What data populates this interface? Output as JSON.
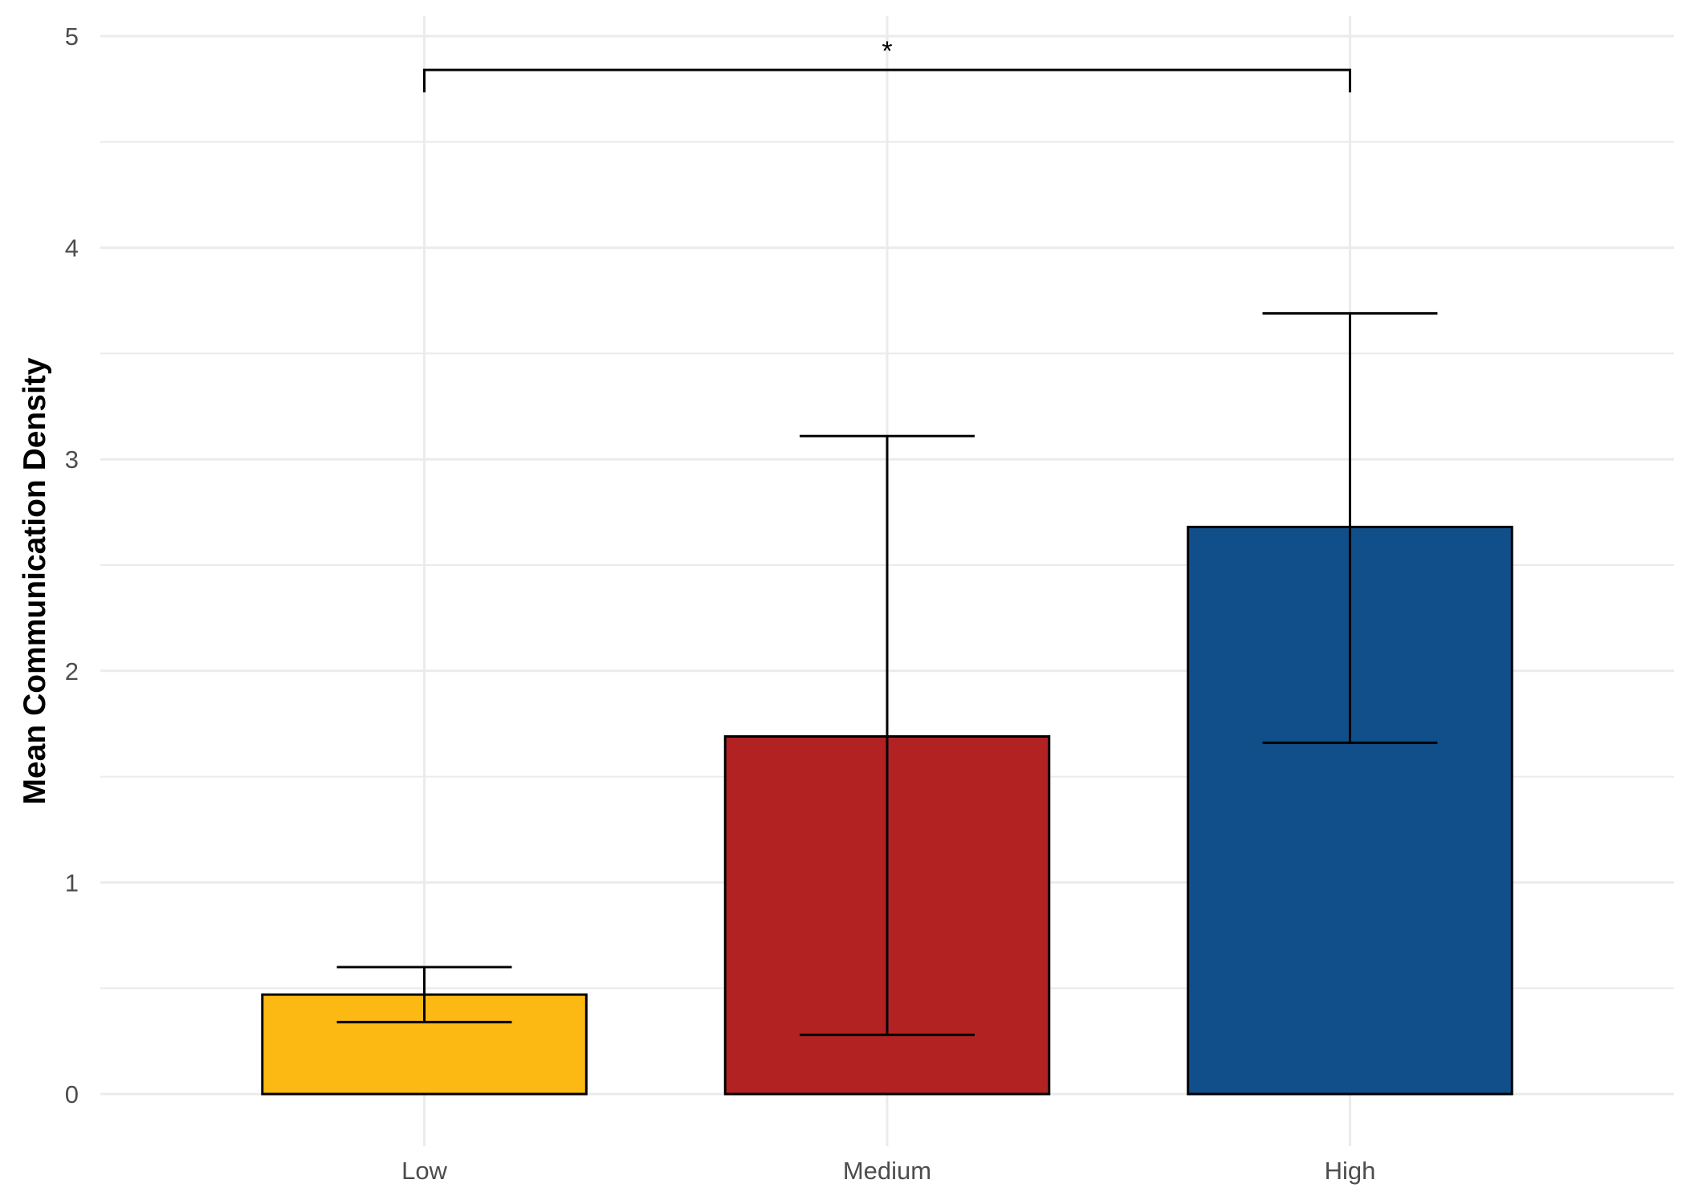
{
  "chart_data": {
    "type": "bar",
    "title": "",
    "xlabel": "",
    "ylabel": "Mean Communication Density",
    "ylim": [
      -0.1,
      5.1
    ],
    "yticks": [
      0,
      1,
      2,
      3,
      4,
      5
    ],
    "categories": [
      "Low",
      "Medium",
      "High"
    ],
    "values": [
      0.47,
      1.69,
      2.68
    ],
    "error_low": [
      0.34,
      0.28,
      1.66
    ],
    "error_high": [
      0.6,
      3.11,
      3.69
    ],
    "colors": [
      "#FDB913",
      "#B22222",
      "#114F8A"
    ],
    "grid": true,
    "legend": "none",
    "significance": {
      "from": "Low",
      "to": "High",
      "y": 4.84,
      "label": "*"
    }
  }
}
